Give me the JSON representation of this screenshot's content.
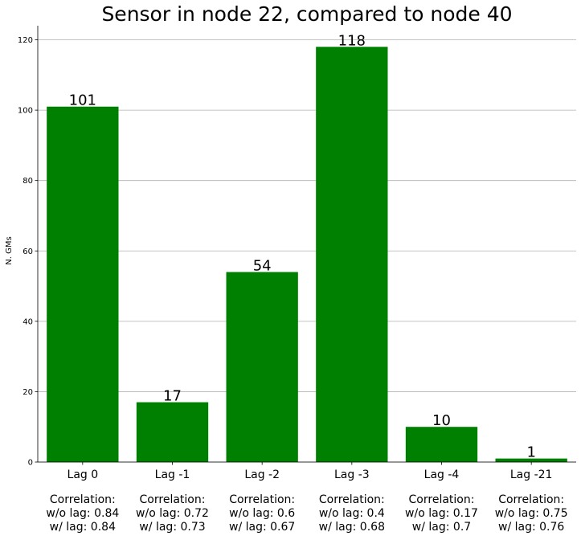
{
  "chart_data": {
    "type": "bar",
    "title": "Sensor in node 22, compared to node 40",
    "xlabel": "",
    "ylabel": "N. GMs",
    "ylim": [
      0,
      124
    ],
    "yticks": [
      0,
      20,
      40,
      60,
      80,
      100,
      120
    ],
    "grid": "y",
    "bar_color": "#008000",
    "categories": [
      "Lag 0",
      "Lag -1",
      "Lag -2",
      "Lag -3",
      "Lag -4",
      "Lag -21"
    ],
    "values": [
      101,
      17,
      54,
      118,
      10,
      1
    ],
    "annotations": [
      [
        "Correlation:",
        "w/o lag: 0.84",
        "w/ lag: 0.84"
      ],
      [
        "Correlation:",
        "w/o lag: 0.72",
        "w/ lag: 0.73"
      ],
      [
        "Correlation:",
        "w/o lag: 0.6",
        "w/ lag: 0.67"
      ],
      [
        "Correlation:",
        "w/o lag: 0.4",
        "w/ lag: 0.68"
      ],
      [
        "Correlation:",
        "w/o lag: 0.17",
        "w/ lag: 0.7"
      ],
      [
        "Correlation:",
        "w/o lag: 0.75",
        "w/ lag: 0.76"
      ]
    ]
  }
}
